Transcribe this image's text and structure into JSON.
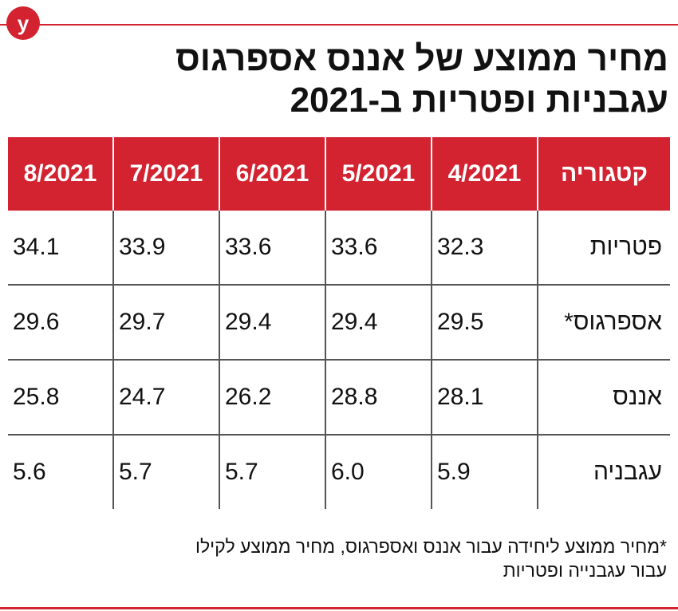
{
  "logo": {
    "letter": "y",
    "color": "#d32230"
  },
  "title": {
    "line1": "מחיר ממוצע של אננס אספרגוס",
    "line2": "עגבניות ופטריות ב-2021"
  },
  "header_color": "#d32230",
  "chart_data": {
    "type": "table",
    "columns": [
      "קטגוריה",
      "4/2021",
      "5/2021",
      "6/2021",
      "7/2021",
      "8/2021"
    ],
    "rows": [
      {
        "category": "פטריות",
        "values": [
          "32.3",
          "33.6",
          "33.6",
          "33.9",
          "34.1"
        ]
      },
      {
        "category": "אספרגוס*",
        "values": [
          "29.5",
          "29.4",
          "29.4",
          "29.7",
          "29.6"
        ]
      },
      {
        "category": "אננס",
        "values": [
          "28.1",
          "28.8",
          "26.2",
          "24.7",
          "25.8"
        ]
      },
      {
        "category": "עגבניה",
        "values": [
          "5.9",
          "6.0",
          "5.7",
          "5.7",
          "5.6"
        ]
      }
    ]
  },
  "footnote": {
    "line1": "*מחיר ממוצע ליחידה עבור אננס ואספרגוס, מחיר ממוצע לקילו",
    "line2": "עבור עגבנייה ופטריות"
  }
}
